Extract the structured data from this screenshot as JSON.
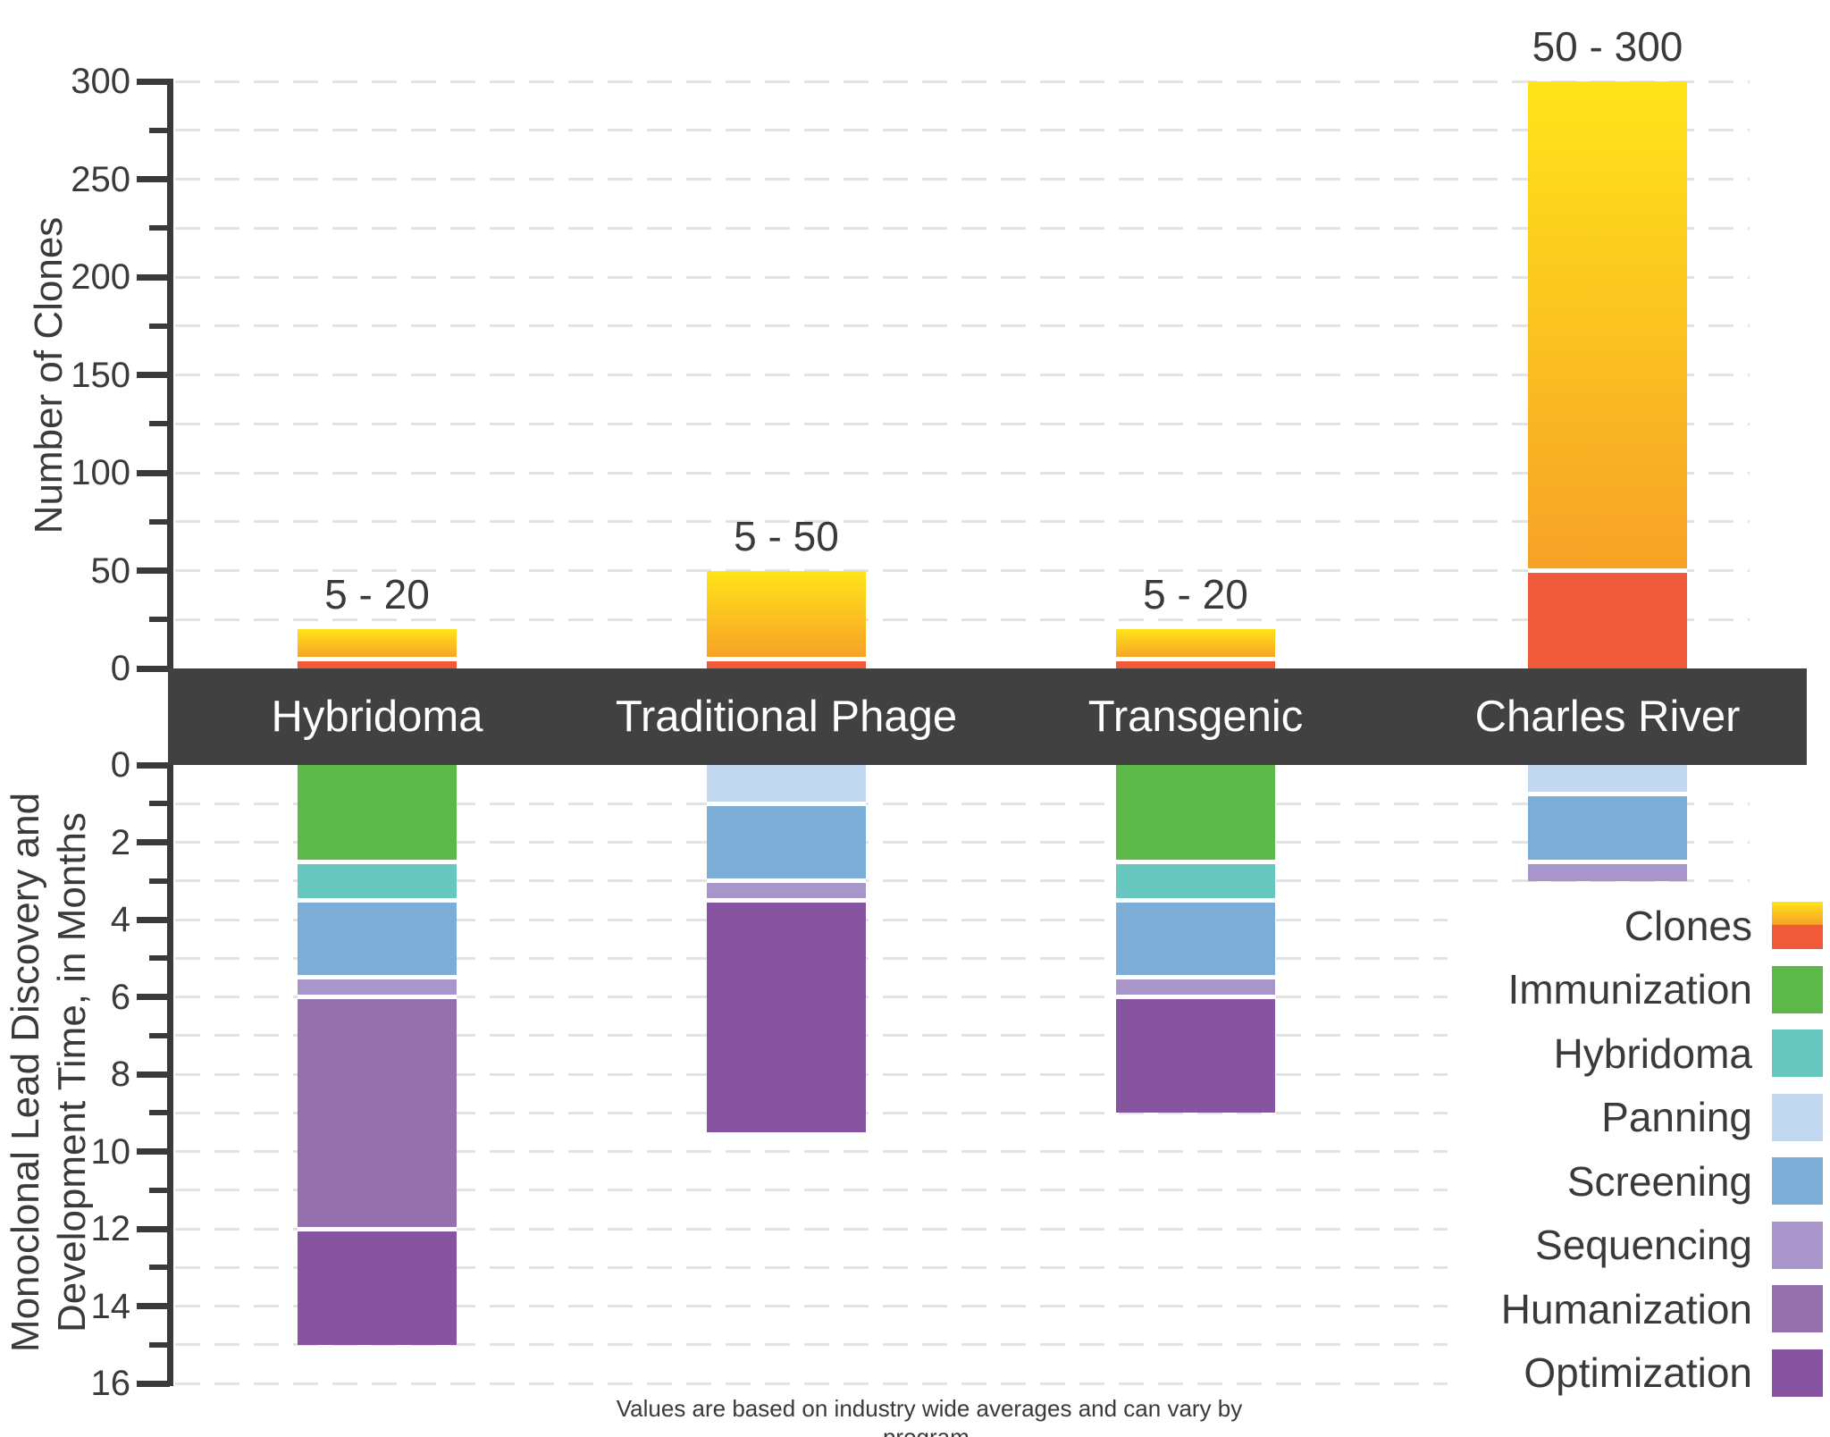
{
  "axes": {
    "clones_axis_title": "Number of Clones",
    "time_axis_title_line1": "Monoclonal Lead Discovery and",
    "time_axis_title_line2": "Development Time, in Months"
  },
  "categories": [
    "Hybridoma",
    "Traditional Phage",
    "Transgenic",
    "Charles River"
  ],
  "legend_items": [
    "Clones",
    "Immunization",
    "Hybridoma",
    "Panning",
    "Screening",
    "Sequencing",
    "Humanization",
    "Optimization"
  ],
  "footnote": "Values are based on industry wide averages and can vary by program.",
  "colors": {
    "clones_gradient_top": "#FFE419",
    "clones_gradient_bottom": "#F7A127",
    "clones_base": "#F15A39",
    "Immunization": "#5DB84A",
    "Hybridoma": "#68C7BE",
    "Panning": "#C2D8F0",
    "Screening": "#7CADD6",
    "Sequencing": "#A896CA",
    "Humanization": "#9470AC",
    "Optimization": "#8754A1",
    "band": "#414141",
    "text": "#3A3A3A",
    "gridline": "#E3E3E3"
  },
  "chart_data": {
    "type": "bar",
    "subtype": "dual-axis stacked range chart",
    "categories": [
      "Hybridoma",
      "Traditional Phage",
      "Transgenic",
      "Charles River"
    ],
    "clones": {
      "ylabel": "Number of Clones",
      "ylim": [
        0,
        300
      ],
      "yticks": [
        0,
        50,
        100,
        150,
        200,
        250,
        300
      ],
      "minor_tick_step": 25,
      "ranges": [
        [
          5,
          20
        ],
        [
          5,
          50
        ],
        [
          5,
          20
        ],
        [
          50,
          300
        ]
      ],
      "labels": [
        "5 - 20",
        "5 - 50",
        "5 - 20",
        "50 - 300"
      ],
      "legend_position": "right-bottom",
      "grid": "dashed horizontal every 25"
    },
    "timeline": {
      "ylabel": "Monoclonal Lead Discovery and Development Time, in Months",
      "ylim": [
        0,
        16
      ],
      "yticks": [
        0,
        2,
        4,
        6,
        8,
        10,
        12,
        14,
        16
      ],
      "minor_tick_step": 1,
      "grid": "dashed horizontal every 1 month",
      "bars": [
        {
          "category": "Hybridoma",
          "total_months": 15,
          "segments": [
            [
              "Immunization",
              0,
              2.5
            ],
            [
              "Hybridoma",
              2.5,
              3.5
            ],
            [
              "Screening",
              3.5,
              5.5
            ],
            [
              "Sequencing",
              5.5,
              6
            ],
            [
              "Humanization",
              6,
              12
            ],
            [
              "Optimization",
              12,
              15
            ]
          ]
        },
        {
          "category": "Traditional Phage",
          "total_months": 9.5,
          "segments": [
            [
              "Panning",
              0,
              1
            ],
            [
              "Screening",
              1,
              3
            ],
            [
              "Sequencing",
              3,
              3.5
            ],
            [
              "Optimization",
              3.5,
              9.5
            ]
          ]
        },
        {
          "category": "Transgenic",
          "total_months": 9,
          "segments": [
            [
              "Immunization",
              0,
              2.5
            ],
            [
              "Hybridoma",
              2.5,
              3.5
            ],
            [
              "Screening",
              3.5,
              5.5
            ],
            [
              "Sequencing",
              5.5,
              6
            ],
            [
              "Optimization",
              6,
              9
            ]
          ]
        },
        {
          "category": "Charles River",
          "total_months": 3,
          "segments": [
            [
              "Panning",
              0,
              0.75
            ],
            [
              "Screening",
              0.75,
              2.5
            ],
            [
              "Sequencing",
              2.5,
              3
            ]
          ]
        }
      ]
    }
  }
}
